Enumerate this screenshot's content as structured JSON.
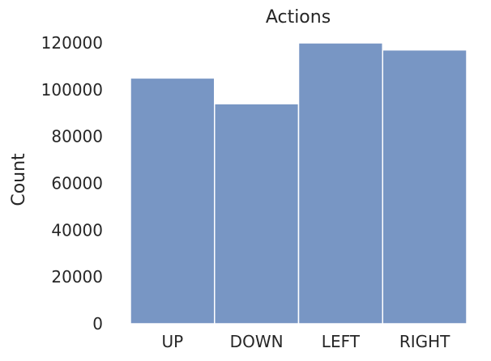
{
  "chart_data": {
    "type": "bar",
    "title": "Actions",
    "xlabel": "",
    "ylabel": "Count",
    "categories": [
      "UP",
      "DOWN",
      "LEFT",
      "RIGHT"
    ],
    "values": [
      105000,
      94000,
      120000,
      117000
    ],
    "ylim": [
      0,
      120000
    ],
    "yticks": [
      "0",
      "20000",
      "40000",
      "60000",
      "80000",
      "100000",
      "120000"
    ],
    "grid": false,
    "legend": "none",
    "bar_color": "#7896c4",
    "bar_edge_color": "#ffffff"
  }
}
